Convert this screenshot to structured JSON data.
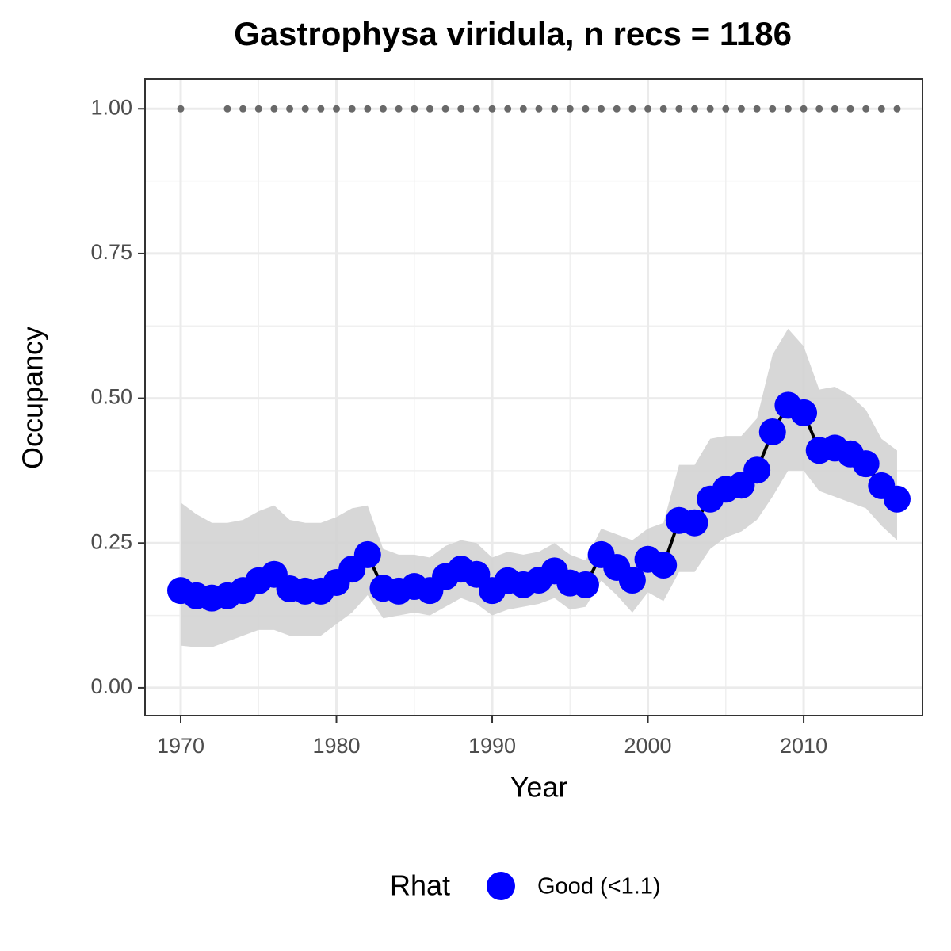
{
  "chart_data": {
    "type": "line",
    "title": "Gastrophysa viridula, n recs = 1186",
    "x_label": "Year",
    "y_label": "Occupancy",
    "x": [
      1970,
      1971,
      1972,
      1973,
      1974,
      1975,
      1976,
      1977,
      1978,
      1979,
      1980,
      1981,
      1982,
      1983,
      1984,
      1985,
      1986,
      1987,
      1988,
      1989,
      1990,
      1991,
      1992,
      1993,
      1994,
      1995,
      1996,
      1997,
      1998,
      1999,
      2000,
      2001,
      2002,
      2003,
      2004,
      2005,
      2006,
      2007,
      2008,
      2009,
      2010,
      2011,
      2012,
      2013,
      2014,
      2015,
      2016
    ],
    "series": [
      {
        "name": "Good (<1.1)",
        "color": "#0000ff",
        "line_color": "#000000",
        "values": [
          0.168,
          0.159,
          0.155,
          0.159,
          0.168,
          0.185,
          0.196,
          0.171,
          0.167,
          0.167,
          0.182,
          0.205,
          0.23,
          0.172,
          0.167,
          0.175,
          0.168,
          0.192,
          0.205,
          0.196,
          0.168,
          0.185,
          0.178,
          0.186,
          0.202,
          0.181,
          0.178,
          0.23,
          0.208,
          0.186,
          0.222,
          0.212,
          0.289,
          0.285,
          0.326,
          0.343,
          0.35,
          0.376,
          0.442,
          0.488,
          0.475,
          0.41,
          0.414,
          0.404,
          0.387,
          0.349,
          0.326
        ],
        "lower": [
          0.073,
          0.07,
          0.07,
          0.08,
          0.09,
          0.1,
          0.1,
          0.09,
          0.09,
          0.09,
          0.11,
          0.13,
          0.16,
          0.12,
          0.125,
          0.13,
          0.125,
          0.14,
          0.155,
          0.145,
          0.125,
          0.135,
          0.14,
          0.145,
          0.155,
          0.135,
          0.14,
          0.185,
          0.16,
          0.13,
          0.165,
          0.15,
          0.2,
          0.2,
          0.24,
          0.26,
          0.27,
          0.29,
          0.33,
          0.375,
          0.375,
          0.34,
          0.33,
          0.32,
          0.31,
          0.28,
          0.255
        ],
        "upper": [
          0.32,
          0.3,
          0.285,
          0.285,
          0.29,
          0.305,
          0.315,
          0.29,
          0.285,
          0.285,
          0.295,
          0.31,
          0.315,
          0.24,
          0.23,
          0.23,
          0.225,
          0.245,
          0.255,
          0.25,
          0.225,
          0.235,
          0.23,
          0.235,
          0.25,
          0.23,
          0.22,
          0.275,
          0.265,
          0.255,
          0.275,
          0.285,
          0.385,
          0.385,
          0.43,
          0.435,
          0.435,
          0.465,
          0.575,
          0.62,
          0.59,
          0.515,
          0.52,
          0.505,
          0.48,
          0.43,
          0.41
        ],
        "band_color": "#d3d3d3"
      }
    ],
    "record_dots": {
      "color": "#696969",
      "values": [
        1,
        null,
        null,
        1,
        1,
        1,
        1,
        1,
        1,
        1,
        1,
        1,
        1,
        1,
        1,
        1,
        1,
        1,
        1,
        1,
        1,
        1,
        1,
        1,
        1,
        1,
        1,
        1,
        1,
        1,
        1,
        1,
        1,
        1,
        1,
        1,
        1,
        1,
        1,
        1,
        1,
        1,
        1,
        1,
        1,
        1,
        1
      ]
    },
    "legend_title": "Rhat",
    "legend_position": "bottom",
    "xlim": [
      1967.71,
      2017.63
    ],
    "ylim": [
      -0.048,
      1.051
    ],
    "xticks": [
      1970,
      1980,
      1990,
      2000,
      2010
    ],
    "yticks": [
      {
        "value": 0,
        "label": "0.00"
      },
      {
        "value": 0.25,
        "label": "0.25"
      },
      {
        "value": 0.5,
        "label": "0.50"
      },
      {
        "value": 0.75,
        "label": "0.75"
      },
      {
        "value": 1,
        "label": "1.00"
      }
    ],
    "grid": true
  }
}
